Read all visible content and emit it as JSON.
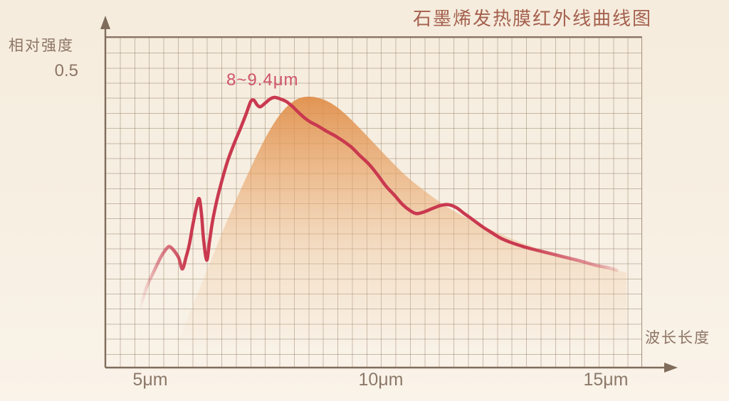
{
  "title": "石墨烯发热膜红外线曲线图",
  "y_axis": {
    "label": "相对强度",
    "tick_label": "0.5"
  },
  "x_axis": {
    "label": "波长长度",
    "tick_labels": [
      "5μm",
      "10μm",
      "15μm"
    ]
  },
  "annotation": {
    "text": "8~9.4μm"
  },
  "colors": {
    "background": "#f7efe2",
    "grid_line": "#8c7660",
    "axis": "#7f6c5b",
    "label_text": "#8d7566",
    "title_text": "#a5604e",
    "annotation_text": "#d0546a",
    "curve": "#c9394f",
    "envelope_top": "#df8a43",
    "envelope_mid": "#e8a468",
    "envelope_low": "#eec49a"
  },
  "chart_data": {
    "type": "area",
    "title": "石墨烯发热膜红外线曲线图",
    "xlabel": "波长长度",
    "ylabel": "相对强度",
    "x_unit": "μm",
    "xlim": [
      4.2,
      16.7
    ],
    "ylim": [
      0,
      0.56
    ],
    "x_ticks": [
      5,
      10,
      15
    ],
    "y_ticks": [
      0.5
    ],
    "grid": true,
    "legend": "none",
    "peak_annotation": {
      "text": "8~9.4μm",
      "wavelength_range_um": [
        8,
        9.4
      ]
    },
    "series": [
      {
        "name": "red-curve",
        "type": "line",
        "color": "#c9394f",
        "points": [
          [
            4.94,
            0.1
          ],
          [
            5.09,
            0.136
          ],
          [
            5.25,
            0.163
          ],
          [
            5.4,
            0.187
          ],
          [
            5.53,
            0.202
          ],
          [
            5.6,
            0.205
          ],
          [
            5.7,
            0.197
          ],
          [
            5.79,
            0.186
          ],
          [
            5.87,
            0.167
          ],
          [
            5.95,
            0.187
          ],
          [
            6.02,
            0.208
          ],
          [
            6.1,
            0.242
          ],
          [
            6.18,
            0.273
          ],
          [
            6.24,
            0.286
          ],
          [
            6.29,
            0.258
          ],
          [
            6.33,
            0.219
          ],
          [
            6.4,
            0.182
          ],
          [
            6.46,
            0.213
          ],
          [
            6.53,
            0.249
          ],
          [
            6.63,
            0.286
          ],
          [
            6.74,
            0.319
          ],
          [
            6.86,
            0.351
          ],
          [
            7.0,
            0.38
          ],
          [
            7.14,
            0.406
          ],
          [
            7.26,
            0.43
          ],
          [
            7.36,
            0.451
          ],
          [
            7.43,
            0.453
          ],
          [
            7.5,
            0.445
          ],
          [
            7.57,
            0.442
          ],
          [
            7.67,
            0.448
          ],
          [
            7.78,
            0.455
          ],
          [
            7.88,
            0.458
          ],
          [
            8.01,
            0.455
          ],
          [
            8.13,
            0.451
          ],
          [
            8.26,
            0.443
          ],
          [
            8.38,
            0.434
          ],
          [
            8.52,
            0.424
          ],
          [
            8.66,
            0.416
          ],
          [
            8.81,
            0.41
          ],
          [
            9.0,
            0.401
          ],
          [
            9.19,
            0.393
          ],
          [
            9.37,
            0.384
          ],
          [
            9.56,
            0.373
          ],
          [
            9.74,
            0.359
          ],
          [
            9.93,
            0.345
          ],
          [
            10.12,
            0.327
          ],
          [
            10.3,
            0.308
          ],
          [
            10.49,
            0.292
          ],
          [
            10.67,
            0.276
          ],
          [
            10.83,
            0.266
          ],
          [
            10.97,
            0.261
          ],
          [
            11.14,
            0.264
          ],
          [
            11.33,
            0.27
          ],
          [
            11.51,
            0.275
          ],
          [
            11.67,
            0.276
          ],
          [
            11.84,
            0.271
          ],
          [
            12.01,
            0.261
          ],
          [
            12.19,
            0.251
          ],
          [
            12.4,
            0.239
          ],
          [
            12.6,
            0.229
          ],
          [
            12.81,
            0.219
          ],
          [
            13.06,
            0.211
          ],
          [
            13.34,
            0.204
          ],
          [
            13.64,
            0.198
          ],
          [
            13.95,
            0.192
          ],
          [
            14.26,
            0.186
          ],
          [
            14.57,
            0.18
          ],
          [
            14.89,
            0.173
          ],
          [
            15.16,
            0.169
          ],
          [
            15.33,
            0.165
          ]
        ]
      },
      {
        "name": "orange-envelope",
        "type": "area",
        "color": "#df8a43",
        "points": [
          [
            5.82,
            0.052
          ],
          [
            6.16,
            0.117
          ],
          [
            6.52,
            0.187
          ],
          [
            6.89,
            0.257
          ],
          [
            7.29,
            0.327
          ],
          [
            7.7,
            0.392
          ],
          [
            8.04,
            0.433
          ],
          [
            8.35,
            0.454
          ],
          [
            8.64,
            0.459
          ],
          [
            8.95,
            0.454
          ],
          [
            9.26,
            0.44
          ],
          [
            9.6,
            0.416
          ],
          [
            9.96,
            0.387
          ],
          [
            10.35,
            0.355
          ],
          [
            10.74,
            0.325
          ],
          [
            11.17,
            0.298
          ],
          [
            11.64,
            0.272
          ],
          [
            12.13,
            0.251
          ],
          [
            12.67,
            0.231
          ],
          [
            13.25,
            0.212
          ],
          [
            13.84,
            0.196
          ],
          [
            14.43,
            0.182
          ],
          [
            15.0,
            0.171
          ],
          [
            15.54,
            0.161
          ]
        ]
      }
    ]
  }
}
